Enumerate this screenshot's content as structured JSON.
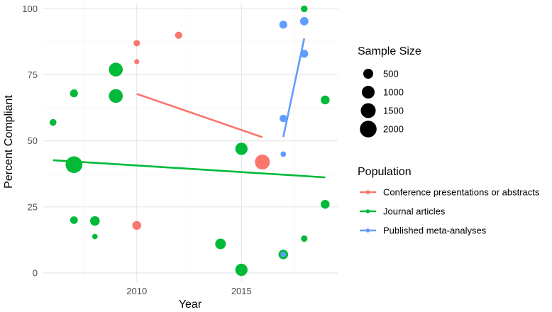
{
  "chart_data": {
    "type": "scatter",
    "title": "",
    "xlabel": "Year",
    "ylabel": "Percent Compliant",
    "xlim": [
      2005.5,
      2019.6
    ],
    "ylim": [
      -3.5,
      102
    ],
    "x_ticks": [
      2010,
      2015
    ],
    "y_ticks": [
      0,
      25,
      50,
      75,
      100
    ],
    "grid": true,
    "series": [
      {
        "name": "Conference presentations or abstracts",
        "color": "#F8766D",
        "points": [
          {
            "x": 2010,
            "y": 87,
            "size": 120
          },
          {
            "x": 2010,
            "y": 80,
            "size": 40
          },
          {
            "x": 2012,
            "y": 90,
            "size": 180
          },
          {
            "x": 2010,
            "y": 18,
            "size": 350
          },
          {
            "x": 2016,
            "y": 42,
            "size": 1500
          }
        ],
        "trend": {
          "x": [
            2010,
            2016
          ],
          "y": [
            67.8,
            51.4
          ]
        }
      },
      {
        "name": "Journal articles",
        "color": "#00BA38",
        "points": [
          {
            "x": 2006,
            "y": 57,
            "size": 150
          },
          {
            "x": 2007,
            "y": 68,
            "size": 250
          },
          {
            "x": 2007,
            "y": 41,
            "size": 2000
          },
          {
            "x": 2007,
            "y": 20,
            "size": 220
          },
          {
            "x": 2008,
            "y": 19.7,
            "size": 450
          },
          {
            "x": 2008,
            "y": 13.8,
            "size": 60
          },
          {
            "x": 2009,
            "y": 77,
            "size": 1250
          },
          {
            "x": 2009,
            "y": 67,
            "size": 1250
          },
          {
            "x": 2014,
            "y": 11,
            "size": 600
          },
          {
            "x": 2015,
            "y": 47,
            "size": 900
          },
          {
            "x": 2015,
            "y": 1.2,
            "size": 900
          },
          {
            "x": 2017,
            "y": 7,
            "size": 450
          },
          {
            "x": 2018,
            "y": 100,
            "size": 140
          },
          {
            "x": 2018,
            "y": 13,
            "size": 120
          },
          {
            "x": 2019,
            "y": 65.5,
            "size": 350
          },
          {
            "x": 2019,
            "y": 26,
            "size": 350
          }
        ],
        "trend": {
          "x": [
            2006,
            2019
          ],
          "y": [
            42.7,
            36.2
          ]
        }
      },
      {
        "name": "Published meta-analyses",
        "color": "#619CFF",
        "points": [
          {
            "x": 2017,
            "y": 94,
            "size": 250
          },
          {
            "x": 2018,
            "y": 95.3,
            "size": 300
          },
          {
            "x": 2018,
            "y": 83,
            "size": 250
          },
          {
            "x": 2017,
            "y": 58.5,
            "size": 200
          },
          {
            "x": 2017,
            "y": 45,
            "size": 60
          },
          {
            "x": 2017,
            "y": 7,
            "size": 60
          }
        ],
        "trend": {
          "x": [
            2017,
            2018
          ],
          "y": [
            51.5,
            88.8
          ]
        }
      }
    ],
    "legend": {
      "size_title": "Sample Size",
      "size_entries": [
        {
          "label": "500",
          "value": 500
        },
        {
          "label": "1000",
          "value": 1000
        },
        {
          "label": "1500",
          "value": 1500
        },
        {
          "label": "2000",
          "value": 2000
        }
      ],
      "color_title": "Population",
      "placement": "right"
    }
  }
}
